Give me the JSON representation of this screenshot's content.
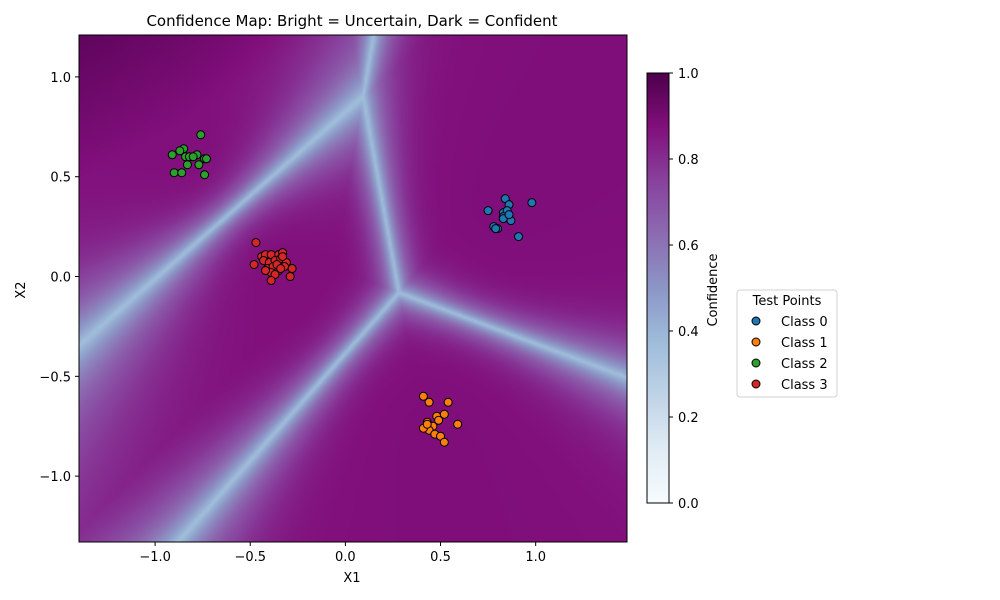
{
  "chart_data": {
    "type": "scatter",
    "title": "Confidence Map: Bright = Uncertain, Dark = Confident",
    "xlabel": "X1",
    "ylabel": "X2",
    "xlim": [
      -1.4,
      1.48
    ],
    "ylim": [
      -1.33,
      1.21
    ],
    "xticks": [
      -1.0,
      -0.5,
      0.0,
      0.5,
      1.0
    ],
    "xtick_labels": [
      "−1.0",
      "−0.5",
      "0.0",
      "0.5",
      "1.0"
    ],
    "yticks": [
      1.0,
      0.5,
      0.0,
      -0.5,
      -1.0
    ],
    "ytick_labels": [
      "1.0",
      "0.5",
      "0.0",
      "−0.5",
      "−1.0"
    ],
    "background": {
      "type": "heatmap",
      "description_value": "confidence",
      "colormap": "BuPu",
      "range": [
        0.0,
        1.0
      ]
    },
    "colorbar": {
      "label": "Confidence",
      "ticks": [
        1.0,
        0.8,
        0.6,
        0.4,
        0.2,
        0.0
      ],
      "tick_labels": [
        "1.0",
        "0.8",
        "0.6",
        "0.4",
        "0.2",
        "0.0"
      ],
      "colors": [
        "#f7fcfd",
        "#e0ecf4",
        "#bfd3e6",
        "#9ebcda",
        "#8c96c6",
        "#8c6bb1",
        "#88419d",
        "#810f7c",
        "#4d004b"
      ]
    },
    "legend": {
      "title": "Test Points",
      "placement": "right"
    },
    "series": [
      {
        "name": "Class 0",
        "color": "#1f77b4",
        "x": [
          0.84,
          0.86,
          0.75,
          0.83,
          0.85,
          0.87,
          0.83,
          0.79,
          0.78,
          0.8,
          0.98,
          0.91,
          0.83,
          0.86,
          0.79
        ],
        "y": [
          0.39,
          0.36,
          0.33,
          0.32,
          0.33,
          0.28,
          0.3,
          0.24,
          0.25,
          0.24,
          0.37,
          0.2,
          0.29,
          0.31,
          0.24
        ]
      },
      {
        "name": "Class 1",
        "color": "#ff7f0e",
        "x": [
          0.41,
          0.44,
          0.54,
          0.48,
          0.52,
          0.59,
          0.43,
          0.46,
          0.49,
          0.44,
          0.41,
          0.47,
          0.5,
          0.52,
          0.43
        ],
        "y": [
          -0.6,
          -0.63,
          -0.63,
          -0.7,
          -0.69,
          -0.74,
          -0.73,
          -0.75,
          -0.72,
          -0.77,
          -0.76,
          -0.79,
          -0.8,
          -0.83,
          -0.74
        ]
      },
      {
        "name": "Class 2",
        "color": "#2ca02c",
        "x": [
          -0.76,
          -0.85,
          -0.87,
          -0.91,
          -0.84,
          -0.82,
          -0.78,
          -0.74,
          -0.73,
          -0.8,
          -0.83,
          -0.77,
          -0.9,
          -0.86,
          -0.74
        ],
        "y": [
          0.71,
          0.64,
          0.63,
          0.61,
          0.6,
          0.6,
          0.61,
          0.59,
          0.59,
          0.6,
          0.56,
          0.56,
          0.52,
          0.52,
          0.51
        ]
      },
      {
        "name": "Class 3",
        "color": "#d62728",
        "x": [
          -0.47,
          -0.44,
          -0.42,
          -0.39,
          -0.35,
          -0.33,
          -0.48,
          -0.43,
          -0.4,
          -0.37,
          -0.34,
          -0.31,
          -0.28,
          -0.41,
          -0.38,
          -0.35,
          -0.32,
          -0.29,
          -0.39,
          -0.36,
          -0.42,
          -0.37,
          -0.34,
          -0.39,
          -0.33
        ],
        "y": [
          0.17,
          0.1,
          0.11,
          0.11,
          0.11,
          0.12,
          0.06,
          0.08,
          0.07,
          0.08,
          0.09,
          0.07,
          0.04,
          0.04,
          0.05,
          0.03,
          0.05,
          0.0,
          0.02,
          0.06,
          0.03,
          0.01,
          0.04,
          -0.02,
          0.1
        ]
      }
    ]
  }
}
